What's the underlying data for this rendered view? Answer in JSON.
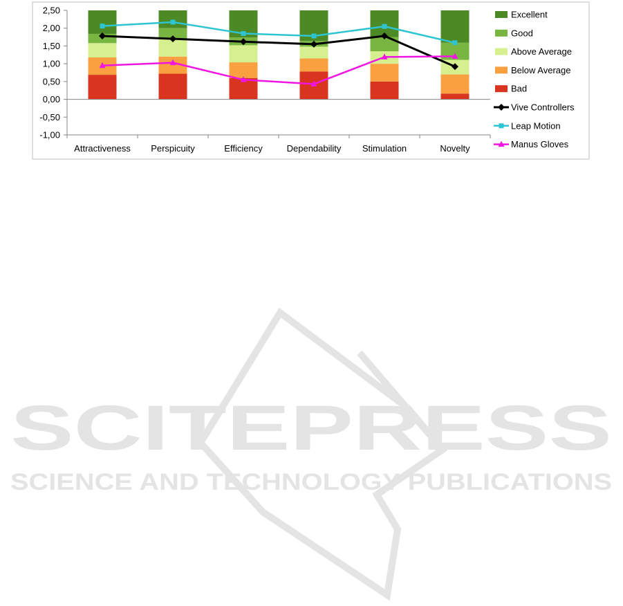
{
  "chart_data": {
    "type": "bar",
    "categories": [
      "Attractiveness",
      "Perspicuity",
      "Efficiency",
      "Dependability",
      "Stimulation",
      "Novelty"
    ],
    "ylim": [
      -1.0,
      2.5
    ],
    "yticks": [
      "2,50",
      "2,00",
      "1,50",
      "1,00",
      "0,50",
      "0,00",
      "-0,50",
      "-1,00"
    ],
    "ytick_values": [
      2.5,
      2.0,
      1.5,
      1.0,
      0.5,
      0.0,
      -0.5,
      -1.0
    ],
    "grid": false,
    "legend_position": "right",
    "benchmark_stacks": [
      {
        "name": "Bad",
        "color": "#d9341f",
        "tops": [
          0.69,
          0.72,
          0.6,
          0.78,
          0.5,
          0.16
        ]
      },
      {
        "name": "Below Average",
        "color": "#f9a040",
        "tops": [
          1.18,
          1.2,
          1.04,
          1.15,
          1.0,
          0.7
        ]
      },
      {
        "name": "Above Average",
        "color": "#d6f08f",
        "tops": [
          1.58,
          1.7,
          1.52,
          1.48,
          1.35,
          1.11
        ]
      },
      {
        "name": "Good",
        "color": "#78b641",
        "tops": [
          1.84,
          2.0,
          1.74,
          1.64,
          1.75,
          1.59
        ]
      },
      {
        "name": "Excellent",
        "color": "#4b8a24",
        "tops": [
          2.5,
          2.5,
          2.5,
          2.5,
          2.5,
          2.5
        ]
      }
    ],
    "series": [
      {
        "name": "Vive Controllers",
        "color": "#000000",
        "marker": "diamond",
        "values": [
          1.78,
          1.7,
          1.62,
          1.55,
          1.78,
          0.92
        ]
      },
      {
        "name": "Leap Motion",
        "color": "#2ec4d2",
        "marker": "square",
        "values": [
          2.06,
          2.17,
          1.85,
          1.78,
          2.05,
          1.59
        ]
      },
      {
        "name": "Manus Gloves",
        "color": "#f015e2",
        "marker": "triangle",
        "values": [
          0.95,
          1.03,
          0.55,
          0.43,
          1.19,
          1.21
        ]
      }
    ]
  },
  "watermark": {
    "brand": "SCITEPRESS",
    "tagline": "SCIENCE AND TECHNOLOGY PUBLICATIONS"
  }
}
